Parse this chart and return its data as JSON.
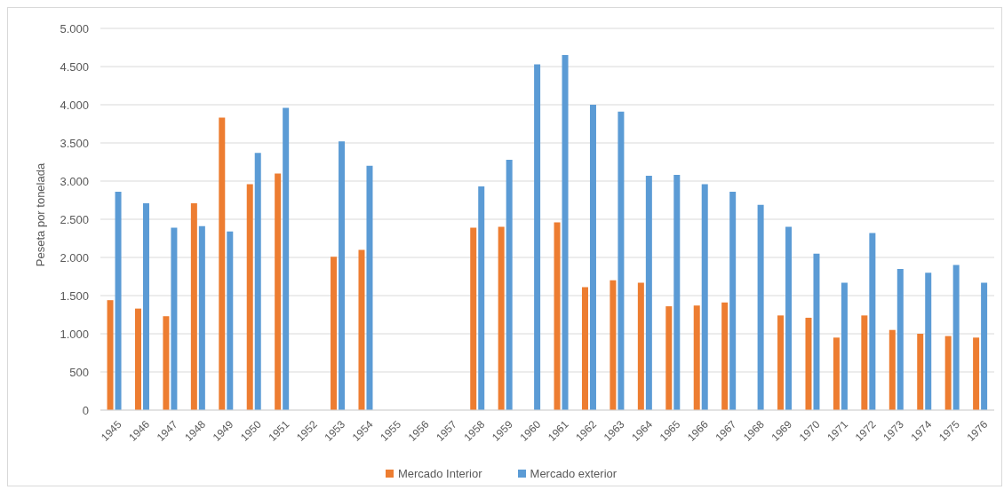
{
  "chart_data": {
    "type": "bar",
    "ylabel": "Peseta por tonelada",
    "categories": [
      "1945",
      "1946",
      "1947",
      "1948",
      "1949",
      "1950",
      "1951",
      "1952",
      "1953",
      "1954",
      "1955",
      "1956",
      "1957",
      "1958",
      "1959",
      "1960",
      "1961",
      "1962",
      "1963",
      "1964",
      "1965",
      "1966",
      "1967",
      "1968",
      "1969",
      "1970",
      "1971",
      "1972",
      "1973",
      "1974",
      "1975",
      "1976"
    ],
    "series": [
      {
        "name": "Mercado Interior",
        "color": "#ed7d31",
        "values": [
          1440,
          1330,
          1230,
          2710,
          3830,
          2960,
          3100,
          null,
          2010,
          2100,
          null,
          null,
          null,
          2390,
          2400,
          null,
          2460,
          1610,
          1700,
          1670,
          1360,
          1370,
          1410,
          null,
          1240,
          1210,
          950,
          1240,
          1050,
          1000,
          970,
          950
        ]
      },
      {
        "name": "Mercado exterior",
        "color": "#5b9bd5",
        "values": [
          2860,
          2710,
          2390,
          2410,
          2340,
          3370,
          3960,
          null,
          3520,
          3200,
          null,
          null,
          null,
          2930,
          3280,
          4530,
          4650,
          4000,
          3910,
          3070,
          3080,
          2960,
          2860,
          2690,
          2400,
          2050,
          1670,
          2320,
          1850,
          1800,
          1900,
          1670
        ]
      }
    ],
    "ylim": [
      0,
      5000
    ],
    "yticks": [
      0,
      500,
      {
        "value": 1000,
        "label": "1.000"
      },
      {
        "value": 1500,
        "label": "1.500"
      },
      {
        "value": 2000,
        "label": "2.000"
      },
      {
        "value": 2500,
        "label": "2.500"
      },
      {
        "value": 3000,
        "label": "3.000"
      },
      {
        "value": 3500,
        "label": "3.500"
      },
      {
        "value": 4000,
        "label": "4.000"
      },
      {
        "value": 4500,
        "label": "4.500"
      },
      {
        "value": 5000,
        "label": "5.000"
      }
    ],
    "grid": "y",
    "legend": "bottom"
  }
}
